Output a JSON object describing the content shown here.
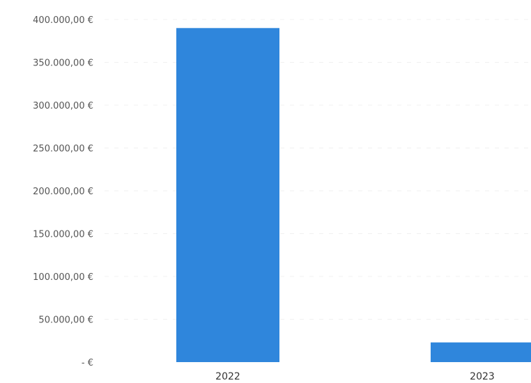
{
  "chart_data": {
    "type": "bar",
    "title": "",
    "xlabel": "",
    "ylabel": "",
    "categories": [
      "2022",
      "2023"
    ],
    "values": [
      390000,
      23000
    ],
    "ylim": [
      0,
      400000
    ],
    "yticks": [
      0,
      50000,
      100000,
      150000,
      200000,
      250000,
      300000,
      350000,
      400000
    ],
    "ytick_labels": [
      "-  €",
      "50.000,00 €",
      "100.000,00 €",
      "150.000,00 €",
      "200.000,00 €",
      "250.000,00 €",
      "300.000,00 €",
      "350.000,00 €",
      "400.000,00 €"
    ],
    "bar_color": "#2f86dc",
    "grid": true,
    "legend": "none"
  }
}
